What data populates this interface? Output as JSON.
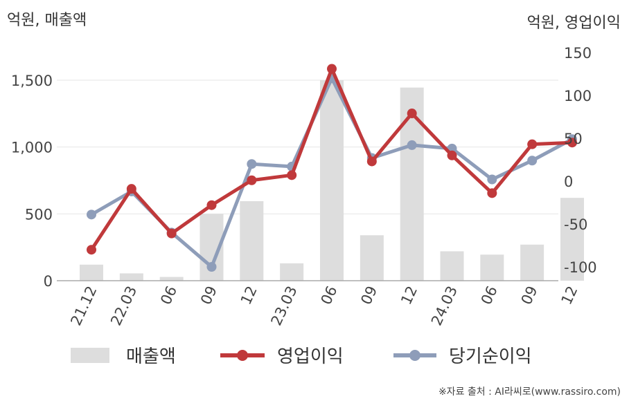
{
  "chart_data": {
    "type": "bar+line",
    "categories": [
      "21.12",
      "22.03",
      "06",
      "09",
      "12",
      "23.03",
      "06",
      "09",
      "12",
      "24.03",
      "06",
      "09",
      "12"
    ],
    "left_axis": {
      "title": "억원, 매출액",
      "ylim": [
        0,
        1750
      ],
      "ticks": [
        "0",
        "500",
        "1,000",
        "1,500"
      ],
      "tick_values": [
        0,
        500,
        1000,
        1500
      ]
    },
    "right_axis": {
      "title": "억원, 영업이익",
      "ylim": [
        -115,
        155
      ],
      "ticks": [
        "-100",
        "-50",
        "0",
        "50",
        "100",
        "150"
      ],
      "tick_values": [
        -100,
        -50,
        0,
        50,
        100,
        150
      ]
    },
    "series": [
      {
        "name": "매출액",
        "kind": "bar",
        "axis": "left",
        "color": "#dddddd",
        "values": [
          120,
          55,
          28,
          500,
          595,
          130,
          1500,
          340,
          1445,
          220,
          195,
          270,
          620
        ]
      },
      {
        "name": "영업이익",
        "kind": "line",
        "axis": "right",
        "color": "#c0393b",
        "values": [
          -80,
          -9,
          -61,
          -28,
          1,
          7,
          131,
          23,
          79,
          30,
          -14,
          43,
          45
        ]
      },
      {
        "name": "당기순이익",
        "kind": "line",
        "axis": "right",
        "color": "#8e9db9",
        "values": [
          -39,
          -12,
          -60,
          -100,
          20,
          17,
          120,
          27,
          42,
          38,
          2,
          24,
          49
        ]
      }
    ],
    "grid": true,
    "legend": "bottom"
  },
  "source_note": "※자료 출처 : AI라씨로(www.rassiro.com)"
}
